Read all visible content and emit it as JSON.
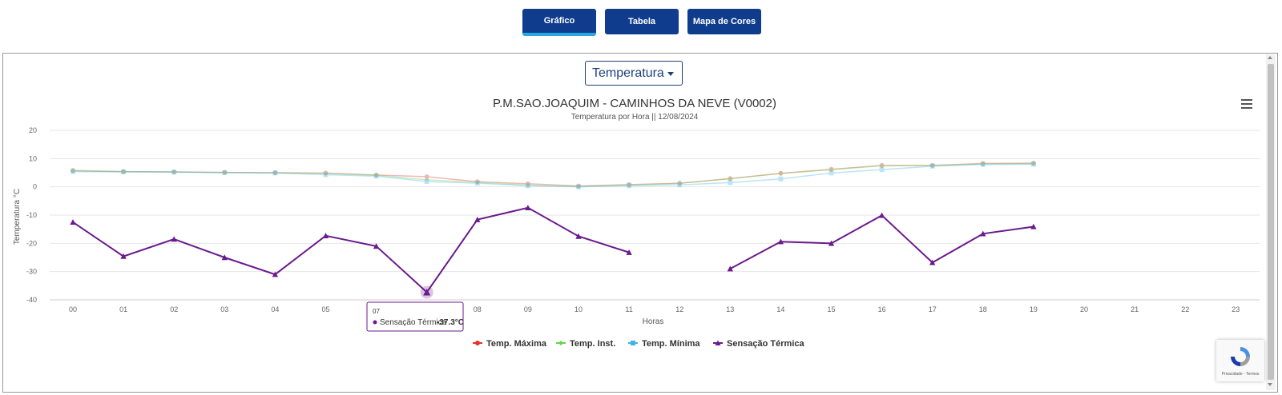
{
  "tabs": [
    {
      "label": "Gráfico",
      "active": true
    },
    {
      "label": "Tabela",
      "active": false
    },
    {
      "label": "Mapa de Cores",
      "active": false
    }
  ],
  "colors": {
    "tab": "#0f3c8c",
    "tab_accent": "#29a8e0",
    "select": "#1b3f7a"
  },
  "selector": {
    "value": "Temperatura"
  },
  "menu_icon": "hamburger-menu-icon",
  "recaptcha": {
    "text": "Privacidade - Termos"
  },
  "tooltip": {
    "x": "07",
    "series": "Sensação Térmica",
    "value": "-37.3°C"
  },
  "chart_data": {
    "type": "line",
    "title": "P.M.SAO.JOAQUIM - CAMINHOS DA NEVE (V0002)",
    "subtitle": "Temperatura por Hora || 12/08/2024",
    "xlabel": "Horas",
    "ylabel": "Temperatura °C",
    "ylim": [
      -40,
      20
    ],
    "yticks": [
      20,
      10,
      0,
      -10,
      -20,
      -30,
      -40
    ],
    "grid": true,
    "legend_position": "bottom-center",
    "categories": [
      "00",
      "01",
      "02",
      "03",
      "04",
      "05",
      "06",
      "07",
      "08",
      "09",
      "10",
      "11",
      "12",
      "13",
      "14",
      "15",
      "16",
      "17",
      "18",
      "19",
      "20",
      "21",
      "22",
      "23"
    ],
    "series": [
      {
        "name": "Temp. Máxima",
        "color": "#e8302e",
        "marker": "circle",
        "faded": true,
        "values": [
          5.8,
          5.4,
          5.3,
          5.1,
          5.0,
          4.9,
          4.2,
          3.6,
          1.8,
          1.1,
          0.3,
          0.8,
          1.3,
          2.9,
          4.8,
          6.2,
          7.6,
          7.6,
          8.3,
          8.4,
          null,
          null,
          null,
          null
        ]
      },
      {
        "name": "Temp. Inst.",
        "color": "#5fd64b",
        "marker": "diamond",
        "faded": true,
        "values": [
          5.6,
          5.4,
          5.3,
          5.1,
          5.0,
          4.7,
          4.1,
          2.5,
          1.6,
          0.6,
          0.2,
          0.7,
          1.2,
          2.9,
          4.7,
          6.1,
          7.4,
          7.6,
          8.1,
          8.2,
          null,
          null,
          null,
          null
        ]
      },
      {
        "name": "Temp. Mínima",
        "color": "#3fb3e6",
        "marker": "square",
        "faded": true,
        "values": [
          5.4,
          5.3,
          5.2,
          5.0,
          4.9,
          4.3,
          3.8,
          1.9,
          1.3,
          0.4,
          0.0,
          0.4,
          0.7,
          1.5,
          2.8,
          4.9,
          6.1,
          7.3,
          7.9,
          8.0,
          null,
          null,
          null,
          null
        ]
      },
      {
        "name": "Sensação Térmica",
        "color": "#6a1b8c",
        "marker": "triangle",
        "faded": false,
        "values": [
          -12.5,
          -24.6,
          -18.5,
          -25.0,
          -31.0,
          -17.3,
          -21.0,
          -37.3,
          -11.6,
          -7.4,
          -17.5,
          -23.2,
          null,
          -29.0,
          -19.4,
          -20.0,
          -10.1,
          -26.8,
          -16.6,
          -14.1,
          null,
          null,
          null,
          null
        ]
      }
    ]
  }
}
